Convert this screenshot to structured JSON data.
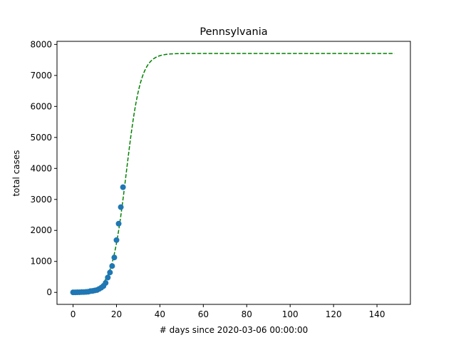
{
  "chart_data": {
    "type": "scatter",
    "title": "Pennsylvania",
    "xlabel": "# days since 2020-03-06 00:00:00",
    "ylabel": "total cases",
    "xlim": [
      -7.4,
      155.4
    ],
    "ylim": [
      -386,
      8100
    ],
    "xticks": [
      0,
      20,
      40,
      60,
      80,
      100,
      120,
      140
    ],
    "yticks": [
      0,
      1000,
      2000,
      3000,
      4000,
      5000,
      6000,
      7000,
      8000
    ],
    "grid": false,
    "colors": {
      "points": "#1f77b4",
      "fit": "#008000"
    },
    "series": [
      {
        "kind": "scatter",
        "x": [
          0,
          1,
          2,
          3,
          4,
          5,
          6,
          7,
          8,
          9,
          10,
          11,
          12,
          13,
          14,
          15,
          16,
          17,
          18,
          19,
          20,
          21,
          22,
          23
        ],
        "y": [
          2,
          2,
          4,
          6,
          10,
          12,
          16,
          22,
          41,
          47,
          63,
          76,
          112,
          152,
          206,
          305,
          479,
          644,
          851,
          1127,
          1687,
          2218,
          2751,
          3394
        ]
      },
      {
        "kind": "fit-line",
        "style": "dashed",
        "logistic": {
          "L": 7710,
          "k": 0.3,
          "x0": 24.5
        },
        "x_range": [
          0,
          148
        ]
      }
    ]
  }
}
